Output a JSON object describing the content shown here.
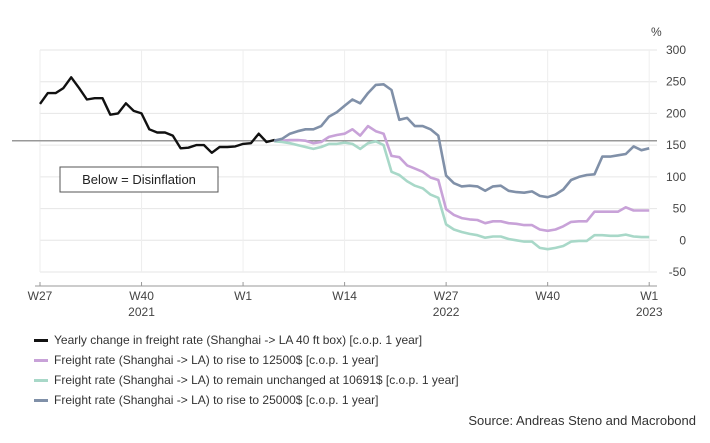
{
  "chart_data": {
    "type": "line",
    "title": "",
    "xlabel": "",
    "ylabel": "",
    "unit_label": "%",
    "ylim": [
      -50,
      300
    ],
    "yticks": [
      -50,
      0,
      50,
      100,
      150,
      200,
      250,
      300
    ],
    "xlim": [
      27,
      106
    ],
    "xticks": [
      {
        "x": 27,
        "label": "W27"
      },
      {
        "x": 40,
        "label": "W40"
      },
      {
        "x": 53,
        "label": "W1"
      },
      {
        "x": 66,
        "label": "W14"
      },
      {
        "x": 79,
        "label": "W27"
      },
      {
        "x": 92,
        "label": "W40"
      },
      {
        "x": 105,
        "label": "W1"
      }
    ],
    "year_labels": [
      {
        "x": 40,
        "label": "2021"
      },
      {
        "x": 79,
        "label": "2022"
      },
      {
        "x": 105,
        "label": "2023"
      }
    ],
    "reference_line": 157,
    "annotation": "Below = Disinflation",
    "series": [
      {
        "name": "Yearly change in freight rate (Shanghai -> LA 40 ft box) [c.o.p. 1 year]",
        "color": "#111111",
        "x": [
          27,
          28,
          29,
          30,
          31,
          32,
          33,
          34,
          35,
          36,
          37,
          38,
          39,
          40,
          41,
          42,
          43,
          44,
          45,
          46,
          47,
          48,
          49,
          50,
          51,
          52,
          53,
          54,
          55,
          56,
          57,
          58
        ],
        "values": [
          215,
          232,
          232,
          240,
          257,
          240,
          222,
          224,
          224,
          198,
          200,
          216,
          204,
          200,
          175,
          170,
          170,
          165,
          145,
          146,
          150,
          150,
          138,
          147,
          147,
          148,
          152,
          153,
          168,
          155,
          158,
          156
        ]
      },
      {
        "name": "Freight rate (Shanghai -> LA) to rise to 12500$ [c.o.p. 1 year]",
        "color": "#c8a2d8",
        "x": [
          57,
          58,
          59,
          60,
          61,
          62,
          63,
          64,
          65,
          66,
          67,
          68,
          69,
          70,
          71,
          72,
          73,
          74,
          75,
          76,
          77,
          78,
          79,
          80,
          81,
          82,
          83,
          84,
          85,
          86,
          87,
          88,
          89,
          90,
          91,
          92,
          93,
          94,
          95,
          96,
          97,
          98,
          99,
          100,
          101,
          102,
          103,
          104,
          105
        ],
        "values": [
          156,
          157,
          158,
          158,
          157,
          153,
          155,
          163,
          166,
          168,
          175,
          165,
          180,
          172,
          168,
          133,
          131,
          118,
          113,
          108,
          99,
          95,
          49,
          40,
          35,
          33,
          32,
          27,
          30,
          30,
          27,
          26,
          24,
          24,
          17,
          15,
          17,
          22,
          29,
          30,
          30,
          45,
          45,
          45,
          45,
          52,
          47,
          47,
          47
        ]
      },
      {
        "name": "Freight rate (Shanghai -> LA) to remain unchanged at 10691$ [c.o.p. 1 year]",
        "color": "#a8d8c8",
        "x": [
          57,
          58,
          59,
          60,
          61,
          62,
          63,
          64,
          65,
          66,
          67,
          68,
          69,
          70,
          71,
          72,
          73,
          74,
          75,
          76,
          77,
          78,
          79,
          80,
          81,
          82,
          83,
          84,
          85,
          86,
          87,
          88,
          89,
          90,
          91,
          92,
          93,
          94,
          95,
          96,
          97,
          98,
          99,
          100,
          101,
          102,
          103,
          104,
          105
        ],
        "values": [
          156,
          155,
          153,
          150,
          147,
          144,
          147,
          152,
          152,
          154,
          152,
          144,
          153,
          156,
          150,
          108,
          103,
          93,
          86,
          82,
          72,
          67,
          25,
          17,
          13,
          10,
          8,
          4,
          6,
          6,
          2,
          0,
          -2,
          -2,
          -12,
          -14,
          -12,
          -9,
          -2,
          -1,
          -1,
          8,
          8,
          7,
          7,
          9,
          6,
          5,
          5
        ]
      },
      {
        "name": "Freight rate (Shanghai -> LA) to rise to 25000$ [c.o.p. 1 year]",
        "color": "#8090a8",
        "x": [
          57,
          58,
          59,
          60,
          61,
          62,
          63,
          64,
          65,
          66,
          67,
          68,
          69,
          70,
          71,
          72,
          73,
          74,
          75,
          76,
          77,
          78,
          79,
          80,
          81,
          82,
          83,
          84,
          85,
          86,
          87,
          88,
          89,
          90,
          91,
          92,
          93,
          94,
          95,
          96,
          97,
          98,
          99,
          100,
          101,
          102,
          103,
          104,
          105
        ],
        "values": [
          157,
          160,
          168,
          172,
          175,
          175,
          180,
          195,
          202,
          212,
          222,
          216,
          232,
          245,
          246,
          237,
          190,
          193,
          180,
          180,
          175,
          165,
          102,
          90,
          85,
          86,
          85,
          78,
          85,
          86,
          78,
          76,
          75,
          77,
          70,
          68,
          72,
          80,
          95,
          100,
          103,
          104,
          132,
          132,
          134,
          136,
          148,
          142,
          145
        ]
      }
    ],
    "legend_position": "bottom-left",
    "source": "Source: Andreas Steno and Macrobond"
  }
}
